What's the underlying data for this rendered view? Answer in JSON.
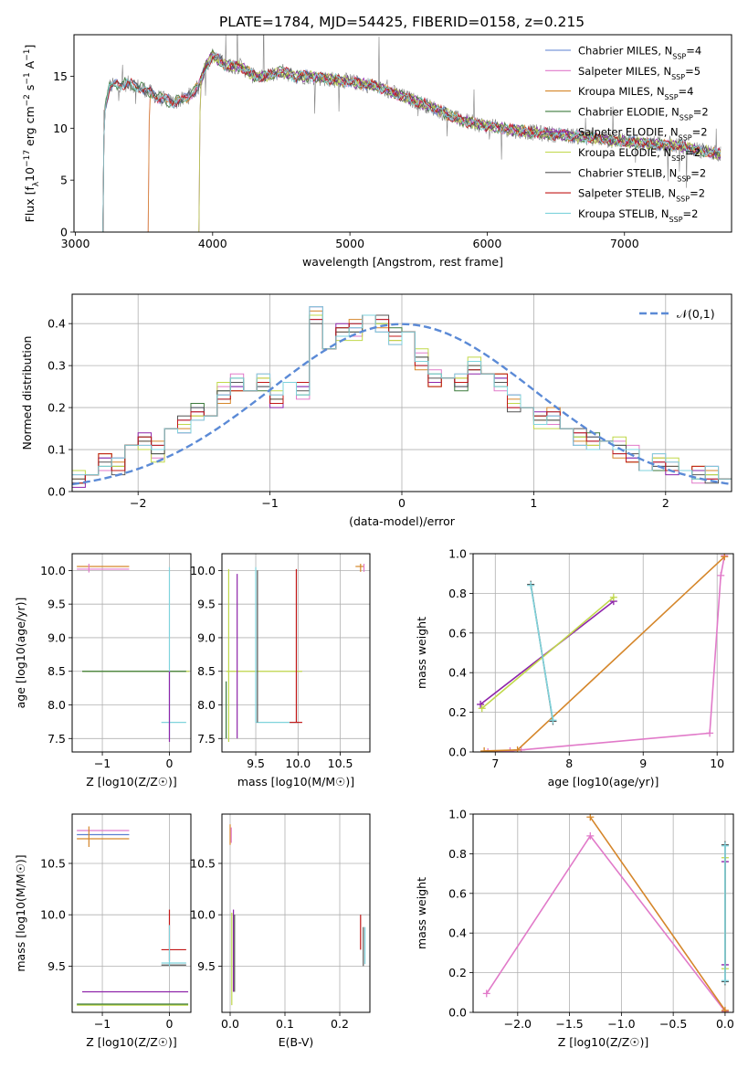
{
  "figure": {
    "title": "PLATE=1784, MJD=54425, FIBERID=0158, z=0.215"
  },
  "colors": {
    "Chabrier MILES": "#5b7fd0",
    "Salpeter MILES": "#e17ac9",
    "Kroupa MILES": "#d5862a",
    "Chabrier ELODIE": "#3c7a3c",
    "Salpeter ELODIE": "#8e24aa",
    "Kroupa ELODIE": "#c0d84a",
    "Chabrier STELIB": "#555555",
    "Salpeter STELIB": "#c21717",
    "Kroupa STELIB": "#7fd3dc",
    "observed": "#808080"
  },
  "chart_data": [
    {
      "id": "spectrum",
      "type": "line",
      "title": "PLATE=1784, MJD=54425, FIBERID=0158, z=0.215",
      "xlabel": "wavelength [Angstrom, rest frame]",
      "ylabel": "Flux [f_λ10^-17 erg cm^-2 s^-1 A^-1]",
      "xlim": [
        2990,
        7780
      ],
      "ylim": [
        0,
        19
      ],
      "xticks": [
        "3000",
        "4000",
        "5000",
        "6000",
        "7000"
      ],
      "yticks": [
        "0",
        "5",
        "10",
        "15"
      ],
      "legend": {
        "position": "top-right",
        "entries": [
          {
            "name": "Chabrier MILES",
            "nssp": "4"
          },
          {
            "name": "Salpeter MILES",
            "nssp": "5"
          },
          {
            "name": "Kroupa MILES",
            "nssp": "4"
          },
          {
            "name": "Chabrier ELODIE",
            "nssp": "2"
          },
          {
            "name": "Salpeter ELODIE",
            "nssp": "2"
          },
          {
            "name": "Kroupa ELODIE",
            "nssp": "2"
          },
          {
            "name": "Chabrier STELIB",
            "nssp": "2"
          },
          {
            "name": "Salpeter STELIB",
            "nssp": "2"
          },
          {
            "name": "Kroupa STELIB",
            "nssp": "2"
          }
        ]
      },
      "continuum": {
        "x": [
          3200,
          3250,
          3300,
          3400,
          3500,
          3600,
          3700,
          3800,
          3900,
          3950,
          4000,
          4100,
          4200,
          4300,
          4400,
          4500,
          4600,
          4700,
          4800,
          5000,
          5200,
          5400,
          5600,
          5800,
          6000,
          6200,
          6400,
          6600,
          6800,
          7000,
          7200,
          7400,
          7500,
          7700
        ],
        "y": [
          11.0,
          14.0,
          14.2,
          14.3,
          13.8,
          13.0,
          12.5,
          12.8,
          14.0,
          16.0,
          17.0,
          16.0,
          16.0,
          15.0,
          15.0,
          15.5,
          15.0,
          15.0,
          14.8,
          14.5,
          14.0,
          13.0,
          12.0,
          10.8,
          10.2,
          9.8,
          9.5,
          9.3,
          9.0,
          8.7,
          8.5,
          8.3,
          8.0,
          7.5
        ]
      },
      "model_starts": [
        {
          "series": "Salpeter MILES",
          "x_start": 3530
        },
        {
          "series": "Kroupa MILES",
          "x_start": 3530
        },
        {
          "series": "Salpeter ELODIE",
          "x_start": 3900
        },
        {
          "series": "Kroupa ELODIE",
          "x_start": 3900
        }
      ]
    },
    {
      "id": "residuals",
      "type": "line",
      "xlabel": "(data-model)/error",
      "ylabel": "Normed distribution",
      "xlim": [
        -2.5,
        2.5
      ],
      "ylim": [
        0,
        0.47
      ],
      "xticks": [
        "−2",
        "−1",
        "0",
        "1",
        "2"
      ],
      "yticks": [
        "0.0",
        "0.1",
        "0.2",
        "0.3",
        "0.4"
      ],
      "reference": {
        "name": "𝒩(0,1)",
        "mean": 0,
        "sd": 1
      },
      "bins": [
        -2.5,
        -2.4,
        -2.3,
        -2.2,
        -2.1,
        -2.0,
        -1.9,
        -1.8,
        -1.7,
        -1.6,
        -1.5,
        -1.4,
        -1.3,
        -1.2,
        -1.1,
        -1.0,
        -0.9,
        -0.8,
        -0.7,
        -0.6,
        -0.5,
        -0.4,
        -0.3,
        -0.2,
        -0.1,
        0.0,
        0.1,
        0.2,
        0.3,
        0.4,
        0.5,
        0.6,
        0.7,
        0.8,
        0.9,
        1.0,
        1.1,
        1.2,
        1.3,
        1.4,
        1.5,
        1.6,
        1.7,
        1.8,
        1.9,
        2.0,
        2.1,
        2.2,
        2.3,
        2.4,
        2.5
      ],
      "base_hist": [
        0.03,
        0.04,
        0.07,
        0.06,
        0.11,
        0.12,
        0.1,
        0.15,
        0.16,
        0.19,
        0.18,
        0.23,
        0.26,
        0.24,
        0.26,
        0.22,
        0.26,
        0.24,
        0.42,
        0.34,
        0.38,
        0.39,
        0.42,
        0.4,
        0.37,
        0.38,
        0.31,
        0.27,
        0.27,
        0.26,
        0.3,
        0.28,
        0.26,
        0.21,
        0.2,
        0.17,
        0.18,
        0.15,
        0.13,
        0.12,
        0.12,
        0.1,
        0.09,
        0.05,
        0.07,
        0.06,
        0.05,
        0.04,
        0.04,
        0.03
      ],
      "series": [
        {
          "name": "Chabrier MILES",
          "offsets": [
            0.01,
            -0.01,
            0.01,
            0.01,
            -0.01
          ]
        },
        {
          "name": "Salpeter MILES",
          "offsets": [
            -0.01,
            0.02,
            -0.02,
            0.01,
            0.02
          ]
        },
        {
          "name": "Kroupa MILES",
          "offsets": [
            0.0,
            -0.02,
            0.02,
            -0.01,
            0.01
          ]
        },
        {
          "name": "Chabrier ELODIE",
          "offsets": [
            0.01,
            0.01,
            -0.01,
            0.0,
            -0.02
          ]
        },
        {
          "name": "Salpeter ELODIE",
          "offsets": [
            0.02,
            0.0,
            0.01,
            -0.02,
            0.0
          ]
        },
        {
          "name": "Kroupa ELODIE",
          "offsets": [
            -0.02,
            0.03,
            0.02,
            0.0,
            0.01
          ]
        },
        {
          "name": "Chabrier STELIB",
          "offsets": [
            0.0,
            0.01,
            0.0,
            0.02,
            -0.01
          ]
        },
        {
          "name": "Salpeter STELIB",
          "offsets": [
            0.01,
            -0.01,
            0.02,
            0.01,
            0.0
          ]
        },
        {
          "name": "Kroupa STELIB",
          "offsets": [
            -0.01,
            0.0,
            -0.01,
            -0.02,
            0.02
          ]
        }
      ]
    },
    {
      "id": "age-vs-Z",
      "type": "scatter",
      "xlabel": "Z [log10(Z/Z☉)]",
      "ylabel": "age  [log10(age/yr)]",
      "xlim": [
        -1.45,
        0.32
      ],
      "ylim": [
        7.3,
        10.25
      ],
      "xticks": [
        {
          "v": -1,
          "t": "−1"
        },
        {
          "v": 0,
          "t": "0"
        }
      ],
      "yticks": [
        {
          "v": 7.5,
          "t": "7.5"
        },
        {
          "v": 8.0,
          "t": "8.0"
        },
        {
          "v": 8.5,
          "t": "8.5"
        },
        {
          "v": 9.0,
          "t": "9.0"
        },
        {
          "v": 9.5,
          "t": "9.5"
        },
        {
          "v": 10.0,
          "t": "10.0"
        }
      ],
      "hbars": [
        {
          "series": "Kroupa MILES",
          "y": 10.06,
          "x1": -1.38,
          "x2": -0.6
        },
        {
          "series": "Salpeter MILES",
          "y": 10.02,
          "x1": -1.38,
          "x2": -0.6
        },
        {
          "series": "Kroupa ELODIE",
          "y": 8.5,
          "x1": -1.3,
          "x2": 0.3
        },
        {
          "series": "Chabrier ELODIE",
          "y": 8.5,
          "x1": -1.3,
          "x2": 0.25
        },
        {
          "series": "Kroupa STELIB",
          "y": 7.74,
          "x1": -0.12,
          "x2": 0.25
        }
      ],
      "vbars": [
        {
          "series": "Kroupa STELIB",
          "x": 0.0,
          "y1": 7.5,
          "y2": 10.05
        },
        {
          "series": "Salpeter ELODIE",
          "x": 0.0,
          "y1": 7.45,
          "y2": 8.5
        },
        {
          "series": "Salpeter MILES",
          "x": -1.2,
          "y1": 9.97,
          "y2": 10.1
        }
      ]
    },
    {
      "id": "age-vs-mass",
      "type": "scatter",
      "xlabel": "mass [log10(M/M☉)]",
      "ylabel": "",
      "xlim": [
        9.1,
        10.85
      ],
      "ylim": [
        7.3,
        10.25
      ],
      "xticks": [
        {
          "v": 9.5,
          "t": "9.5"
        },
        {
          "v": 10.0,
          "t": "10.0"
        },
        {
          "v": 10.5,
          "t": "10.5"
        }
      ],
      "yticks": [
        {
          "v": 7.5,
          "t": "7.5"
        },
        {
          "v": 8.0,
          "t": "8.0"
        },
        {
          "v": 8.5,
          "t": "8.5"
        },
        {
          "v": 9.0,
          "t": "9.0"
        },
        {
          "v": 9.5,
          "t": "9.5"
        },
        {
          "v": 10.0,
          "t": "10.0"
        }
      ],
      "hbars": [
        {
          "series": "Kroupa ELODIE",
          "y": 8.5,
          "x1": 9.15,
          "x2": 10.05
        },
        {
          "series": "Kroupa STELIB",
          "y": 7.74,
          "x1": 9.5,
          "x2": 10.0
        },
        {
          "series": "Salpeter STELIB",
          "y": 7.74,
          "x1": 9.9,
          "x2": 10.05
        },
        {
          "series": "Kroupa MILES",
          "y": 10.06,
          "x1": 10.68,
          "x2": 10.78
        }
      ],
      "vbars": [
        {
          "series": "Kroupa ELODIE",
          "x": 9.18,
          "y1": 7.45,
          "y2": 10.02
        },
        {
          "series": "Salpeter ELODIE",
          "x": 9.28,
          "y1": 7.5,
          "y2": 9.95
        },
        {
          "series": "Chabrier ELODIE",
          "x": 9.15,
          "y1": 7.5,
          "y2": 8.35
        },
        {
          "series": "Kroupa STELIB",
          "x": 9.5,
          "y1": 7.74,
          "y2": 10.05
        },
        {
          "series": "Chabrier STELIB",
          "x": 9.52,
          "y1": 7.74,
          "y2": 10.0
        },
        {
          "series": "Salpeter STELIB",
          "x": 9.98,
          "y1": 7.74,
          "y2": 10.02
        },
        {
          "series": "Kroupa MILES",
          "x": 10.74,
          "y1": 9.98,
          "y2": 10.1
        },
        {
          "series": "Salpeter MILES",
          "x": 10.78,
          "y1": 9.98,
          "y2": 10.1
        }
      ]
    },
    {
      "id": "weight-vs-age",
      "type": "line",
      "xlabel": "age  [log10(age/yr)]",
      "ylabel": "mass weight",
      "xlim": [
        6.7,
        10.22
      ],
      "ylim": [
        0,
        1
      ],
      "xticks": [
        {
          "v": 7,
          "t": "7"
        },
        {
          "v": 8,
          "t": "8"
        },
        {
          "v": 9,
          "t": "9"
        },
        {
          "v": 10,
          "t": "10"
        }
      ],
      "yticks": [
        {
          "v": 0,
          "t": "0.0"
        },
        {
          "v": 0.2,
          "t": "0.2"
        },
        {
          "v": 0.4,
          "t": "0.4"
        },
        {
          "v": 0.6,
          "t": "0.6"
        },
        {
          "v": 0.8,
          "t": "0.8"
        },
        {
          "v": 1.0,
          "t": "1.0"
        }
      ],
      "series": [
        {
          "name": "Salpeter MILES",
          "x": [
            6.9,
            7.2,
            7.35,
            9.9,
            10.05,
            10.1
          ],
          "y": [
            0.0,
            0.005,
            0.01,
            0.095,
            0.89,
            0.99
          ]
        },
        {
          "name": "Kroupa MILES",
          "x": [
            6.85,
            7.3,
            10.1
          ],
          "y": [
            0.005,
            0.01,
            0.985
          ]
        },
        {
          "name": "Salpeter ELODIE",
          "x": [
            6.8,
            8.6
          ],
          "y": [
            0.24,
            0.76
          ]
        },
        {
          "name": "Kroupa ELODIE",
          "x": [
            6.82,
            8.6
          ],
          "y": [
            0.22,
            0.78
          ]
        },
        {
          "name": "Chabrier STELIB",
          "x": [
            7.48,
            7.78
          ],
          "y": [
            0.845,
            0.155
          ]
        },
        {
          "name": "Kroupa STELIB",
          "x": [
            7.48,
            7.78
          ],
          "y": [
            0.84,
            0.16
          ]
        }
      ]
    },
    {
      "id": "mass-vs-Z",
      "type": "scatter",
      "xlabel": "Z [log10(Z/Z☉)]",
      "ylabel": "mass [log10(M/M☉)]",
      "xlim": [
        -1.45,
        0.32
      ],
      "ylim": [
        9.05,
        10.98
      ],
      "xticks": [
        {
          "v": -1,
          "t": "−1"
        },
        {
          "v": 0,
          "t": "0"
        }
      ],
      "yticks": [
        {
          "v": 9.5,
          "t": "9.5"
        },
        {
          "v": 10.0,
          "t": "10.0"
        },
        {
          "v": 10.5,
          "t": "10.5"
        }
      ],
      "hbars": [
        {
          "series": "Salpeter MILES",
          "y": 10.82,
          "x1": -1.38,
          "x2": -0.6
        },
        {
          "series": "Chabrier MILES",
          "y": 10.78,
          "x1": -1.38,
          "x2": -0.6
        },
        {
          "series": "Kroupa MILES",
          "y": 10.74,
          "x1": -1.38,
          "x2": -0.6
        },
        {
          "series": "Salpeter STELIB",
          "y": 9.66,
          "x1": -0.12,
          "x2": 0.25
        },
        {
          "series": "Kroupa STELIB",
          "y": 9.53,
          "x1": -0.12,
          "x2": 0.25
        },
        {
          "series": "Chabrier STELIB",
          "y": 9.51,
          "x1": -0.12,
          "x2": 0.25
        },
        {
          "series": "Salpeter ELODIE",
          "y": 9.25,
          "x1": -1.3,
          "x2": 0.28
        },
        {
          "series": "Kroupa ELODIE",
          "y": 9.12,
          "x1": -1.38,
          "x2": 0.28
        },
        {
          "series": "Chabrier ELODIE",
          "y": 9.13,
          "x1": -1.38,
          "x2": 0.28
        }
      ],
      "vbars": [
        {
          "series": "Kroupa MILES",
          "x": -1.2,
          "y1": 10.66,
          "y2": 10.86
        },
        {
          "series": "Salpeter STELIB",
          "x": 0.0,
          "y1": 9.55,
          "y2": 10.05
        },
        {
          "series": "Kroupa STELIB",
          "x": 0.0,
          "y1": 9.5,
          "y2": 9.9
        }
      ]
    },
    {
      "id": "mass-vs-EBV",
      "type": "scatter",
      "xlabel": "E(B-V)",
      "ylabel": "",
      "xlim": [
        -0.015,
        0.255
      ],
      "ylim": [
        9.05,
        10.98
      ],
      "xticks": [
        {
          "v": 0.0,
          "t": "0.0"
        },
        {
          "v": 0.1,
          "t": "0.1"
        },
        {
          "v": 0.2,
          "t": "0.2"
        }
      ],
      "yticks": [
        {
          "v": 9.5,
          "t": "9.5"
        },
        {
          "v": 10.0,
          "t": "10.0"
        },
        {
          "v": 10.5,
          "t": "10.5"
        }
      ],
      "vbars": [
        {
          "series": "Kroupa MILES",
          "x": 0.0,
          "y1": 10.68,
          "y2": 10.88
        },
        {
          "series": "Salpeter MILES",
          "x": 0.002,
          "y1": 10.7,
          "y2": 10.85
        },
        {
          "series": "Kroupa ELODIE",
          "x": 0.003,
          "y1": 9.12,
          "y2": 10.02
        },
        {
          "series": "Salpeter ELODIE",
          "x": 0.006,
          "y1": 9.25,
          "y2": 10.05
        },
        {
          "series": "Chabrier STELIB",
          "x": 0.008,
          "y1": 9.25,
          "y2": 10.0
        },
        {
          "series": "Salpeter STELIB",
          "x": 0.238,
          "y1": 9.66,
          "y2": 10.0
        },
        {
          "series": "Chabrier STELIB",
          "x": 0.243,
          "y1": 9.5,
          "y2": 9.88
        },
        {
          "series": "Kroupa STELIB",
          "x": 0.246,
          "y1": 9.52,
          "y2": 9.88
        }
      ]
    },
    {
      "id": "weight-vs-Z",
      "type": "line",
      "xlabel": "Z [log10(Z/Z☉)]",
      "ylabel": "mass weight",
      "xlim": [
        -2.43,
        0.08
      ],
      "ylim": [
        0,
        1
      ],
      "xticks": [
        {
          "v": -2.0,
          "t": "−2.0"
        },
        {
          "v": -1.5,
          "t": "−1.5"
        },
        {
          "v": -1.0,
          "t": "−1.0"
        },
        {
          "v": -0.5,
          "t": "−0.5"
        },
        {
          "v": 0.0,
          "t": "0.0"
        }
      ],
      "yticks": [
        {
          "v": 0,
          "t": "0.0"
        },
        {
          "v": 0.2,
          "t": "0.2"
        },
        {
          "v": 0.4,
          "t": "0.4"
        },
        {
          "v": 0.6,
          "t": "0.6"
        },
        {
          "v": 0.8,
          "t": "0.8"
        },
        {
          "v": 1.0,
          "t": "1.0"
        }
      ],
      "series": [
        {
          "name": "Salpeter MILES",
          "x": [
            -2.3,
            -1.3,
            0.0
          ],
          "y": [
            0.095,
            0.89,
            0.005
          ]
        },
        {
          "name": "Kroupa MILES",
          "x": [
            -1.3,
            0.0,
            0.0
          ],
          "y": [
            0.985,
            0.01,
            0.0
          ]
        },
        {
          "name": "Salpeter ELODIE",
          "x": [
            0.0,
            0.0
          ],
          "y": [
            0.24,
            0.76
          ]
        },
        {
          "name": "Kroupa ELODIE",
          "x": [
            0.0,
            0.0
          ],
          "y": [
            0.22,
            0.78
          ]
        },
        {
          "name": "Chabrier STELIB",
          "x": [
            0.0,
            0.0
          ],
          "y": [
            0.155,
            0.845
          ]
        },
        {
          "name": "Kroupa STELIB",
          "x": [
            0.0,
            0.0
          ],
          "y": [
            0.16,
            0.84
          ]
        }
      ]
    }
  ]
}
